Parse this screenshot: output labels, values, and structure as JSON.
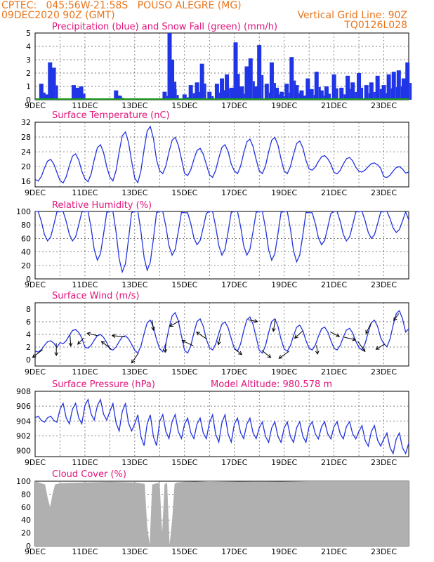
{
  "header": {
    "line1": "CPTEC:   045:56W-21:58S   POUSO ALEGRE (MG)",
    "line2_left": "09DEC2020 90Z (GMT)",
    "line2_right": "Vertical Grid Line: 90Z",
    "model_id": "TQ0126L028"
  },
  "colors": {
    "header": "#e8761e",
    "title": "#e0157a",
    "line": "#2233dd",
    "bar": "#1f35e6",
    "snow": "#1a9a1a",
    "cloud": "#b0b0b0"
  },
  "chart_data": [
    {
      "type": "bar",
      "title": "Precipitation (blue) and Snow Fall (green) (mm/h)",
      "x_ticks": [
        "9DEC",
        "11DEC",
        "13DEC",
        "15DEC",
        "17DEC",
        "19DEC",
        "21DEC",
        "23DEC"
      ],
      "y_ticks": [
        "0",
        "1",
        "2",
        "3",
        "4",
        "5"
      ],
      "ylim": [
        0,
        5
      ],
      "xlim_days": [
        9,
        24
      ],
      "series": [
        {
          "name": "Precipitation",
          "x": [
            9.25,
            9.45,
            9.6,
            9.75,
            10.55,
            10.7,
            10.85,
            12.25,
            12.4,
            14.2,
            14.4,
            14.5,
            14.6,
            15.0,
            15.25,
            15.5,
            15.7,
            16.0,
            16.3,
            16.5,
            16.7,
            16.9,
            17.05,
            17.3,
            17.5,
            17.65,
            17.85,
            18.0,
            18.3,
            18.5,
            18.7,
            18.9,
            19.1,
            19.3,
            19.5,
            19.7,
            19.95,
            20.1,
            20.3,
            20.5,
            20.7,
            21.0,
            21.3,
            21.55,
            21.75,
            22.0,
            22.3,
            22.5,
            22.75,
            23.0,
            23.2,
            23.4,
            23.6,
            23.8,
            23.95
          ],
          "y": [
            1.2,
            0.4,
            2.8,
            2.4,
            1.1,
            0.9,
            1.0,
            0.7,
            0.3,
            0.6,
            5.0,
            3.0,
            0.8,
            0.4,
            1.1,
            1.3,
            2.7,
            0.6,
            1.2,
            1.6,
            1.9,
            0.9,
            4.3,
            1.0,
            2.5,
            3.1,
            1.0,
            4.1,
            1.2,
            2.8,
            0.9,
            0.6,
            1.2,
            3.2,
            1.1,
            0.7,
            1.6,
            0.8,
            2.1,
            0.7,
            1.0,
            1.9,
            0.9,
            1.8,
            1.3,
            2.0,
            1.1,
            1.3,
            1.8,
            1.1,
            1.9,
            2.1,
            2.2,
            1.6,
            2.8
          ]
        },
        {
          "name": "Snow Fall",
          "x": [
            9,
            24
          ],
          "y": [
            0,
            0
          ]
        }
      ]
    },
    {
      "type": "line",
      "title": "Surface Temperature (nC)",
      "x_ticks": [
        "9DEC",
        "11DEC",
        "13DEC",
        "15DEC",
        "17DEC",
        "19DEC",
        "21DEC",
        "23DEC"
      ],
      "y_ticks": [
        "16",
        "20",
        "24",
        "28",
        "32"
      ],
      "ylim": [
        14.5,
        32
      ],
      "series": [
        {
          "name": "Temperature",
          "min": [
            16,
            15.5,
            15.8,
            16,
            15.5,
            18,
            17.5,
            17,
            18,
            18,
            18,
            19,
            18,
            18.5,
            17
          ],
          "max": [
            22,
            23.5,
            26,
            29.5,
            31,
            28,
            25,
            26,
            27.5,
            28,
            27,
            23,
            22.5,
            21,
            20
          ]
        }
      ]
    },
    {
      "type": "line",
      "title": "Relative Humidity (%)",
      "x_ticks": [
        "9DEC",
        "11DEC",
        "13DEC",
        "15DEC",
        "17DEC",
        "19DEC",
        "21DEC",
        "23DEC"
      ],
      "y_ticks": [
        "0",
        "20",
        "40",
        "60",
        "80",
        "100"
      ],
      "ylim": [
        0,
        100
      ],
      "series": [
        {
          "name": "Humidity",
          "min": [
            65,
            65,
            42,
            28,
            30,
            48,
            60,
            48,
            48,
            42,
            40,
            60,
            65,
            68,
            75
          ],
          "max": [
            100,
            100,
            100,
            100,
            100,
            100,
            98,
            100,
            100,
            100,
            100,
            98,
            100,
            100,
            100
          ]
        }
      ]
    },
    {
      "type": "line",
      "title": "Surface Wind (m/s)",
      "x_ticks": [
        "9DEC",
        "11DEC",
        "13DEC",
        "15DEC",
        "17DEC",
        "19DEC",
        "21DEC",
        "23DEC"
      ],
      "y_ticks": [
        "0",
        "2",
        "4",
        "6",
        "8"
      ],
      "ylim": [
        -1,
        9
      ],
      "series": [
        {
          "name": "Wind speed",
          "min": [
            1.2,
            2.5,
            1.8,
            1.5,
            1.0,
            1.2,
            1.0,
            1.5,
            1.3,
            1.0,
            1.3,
            1.5,
            1.5,
            1.5,
            2.0
          ],
          "max": [
            3.0,
            4.8,
            4.0,
            3.8,
            6.3,
            7.5,
            6.5,
            6.0,
            6.8,
            6.5,
            5.5,
            5.2,
            5.0,
            6.3,
            7.8
          ]
        }
      ]
    },
    {
      "type": "line",
      "title": "Surface Pressure (hPa)",
      "annotation": "Model Altitude: 980.578  m",
      "x_ticks": [
        "9DEC",
        "11DEC",
        "13DEC",
        "15DEC",
        "17DEC",
        "19DEC",
        "21DEC",
        "23DEC"
      ],
      "y_ticks": [
        "900",
        "902",
        "904",
        "906",
        "908"
      ],
      "ylim": [
        899.2,
        908
      ],
      "series": [
        {
          "name": "Pressure",
          "min": [
            903.8,
            903.5,
            904.0,
            902.5,
            900.5,
            901.5,
            901.5,
            901.0,
            901.5,
            901.0,
            901.0,
            901.5,
            901.5,
            900.5,
            899.5
          ],
          "max": [
            904.7,
            906.5,
            907.0,
            906.5,
            905.0,
            905.0,
            904.5,
            905.0,
            904.5,
            904.0,
            904.0,
            904.0,
            904.0,
            903.5,
            902.5
          ]
        }
      ]
    },
    {
      "type": "area",
      "title": "Cloud Cover (%)",
      "x_ticks": [
        "9DEC",
        "11DEC",
        "13DEC",
        "15DEC",
        "17DEC",
        "19DEC",
        "21DEC",
        "23DEC"
      ],
      "y_ticks": [
        "0",
        "20",
        "40",
        "60",
        "80",
        "100"
      ],
      "ylim": [
        0,
        100
      ],
      "series": [
        {
          "name": "Cloud cover",
          "x": [
            9.0,
            9.4,
            9.5,
            9.6,
            9.7,
            9.8,
            10.0,
            11.0,
            12.0,
            13.0,
            13.4,
            13.5,
            13.6,
            13.7,
            13.8,
            14.0,
            14.1,
            14.2,
            14.3,
            14.4,
            14.5,
            14.6,
            14.7,
            15.0,
            16.0,
            18.0,
            20.0,
            22.0,
            24.0
          ],
          "y": [
            100,
            95,
            75,
            60,
            80,
            95,
            97,
            98,
            99,
            98,
            96,
            30,
            2,
            95,
            96,
            98,
            20,
            96,
            97,
            2,
            40,
            96,
            98,
            99,
            100,
            99,
            100,
            100,
            100
          ]
        }
      ]
    }
  ]
}
